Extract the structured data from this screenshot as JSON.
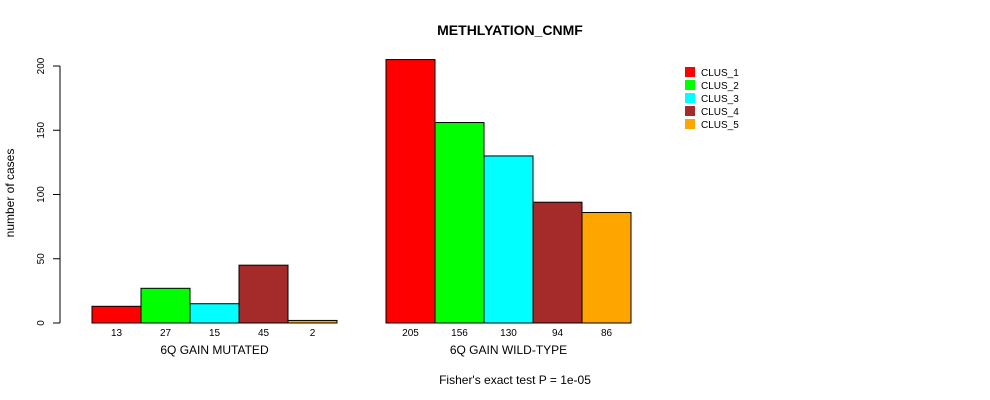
{
  "chart_data": {
    "type": "bar",
    "title": "METHLYATION_CNMF",
    "ylabel": "number of cases",
    "ylim": [
      0,
      205
    ],
    "yticks": [
      0,
      50,
      100,
      150,
      200
    ],
    "groups": [
      {
        "label": "6Q GAIN MUTATED",
        "values": [
          13,
          27,
          15,
          45,
          2
        ]
      },
      {
        "label": "6Q GAIN WILD-TYPE",
        "values": [
          205,
          156,
          130,
          94,
          86
        ]
      }
    ],
    "series": [
      {
        "name": "CLUS_1",
        "color": "#ff0000"
      },
      {
        "name": "CLUS_2",
        "color": "#00ff00"
      },
      {
        "name": "CLUS_3",
        "color": "#00ffff"
      },
      {
        "name": "CLUS_4",
        "color": "#a52a2a"
      },
      {
        "name": "CLUS_5",
        "color": "#ffa500"
      }
    ],
    "legend_position": "top-right",
    "footnote": "Fisher's exact test P = 1e-05"
  }
}
